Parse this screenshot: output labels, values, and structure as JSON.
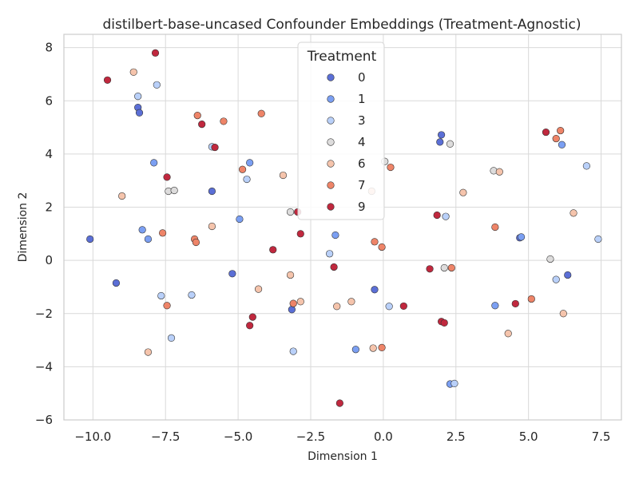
{
  "chart_data": {
    "type": "scatter",
    "title": "distilbert-base-uncased Confounder Embeddings (Treatment-Agnostic)",
    "xlabel": "Dimension 1",
    "ylabel": "Dimension 2",
    "xlim": [
      -11,
      8.2
    ],
    "ylim": [
      -6,
      8.5
    ],
    "xticks": [
      -10,
      -7.5,
      -5,
      -2.5,
      0,
      2.5,
      5,
      7.5
    ],
    "xtick_labels": [
      "−10.0",
      "−7.5",
      "−5.0",
      "−2.5",
      "0.0",
      "2.5",
      "5.0",
      "7.5"
    ],
    "yticks": [
      -6,
      -4,
      -2,
      0,
      2,
      4,
      6,
      8
    ],
    "ytick_labels": [
      "−6",
      "−4",
      "−2",
      "0",
      "2",
      "4",
      "6",
      "8"
    ],
    "grid": true,
    "legend": {
      "title": "Treatment",
      "placement": "top-center"
    },
    "series": [
      {
        "name": "0",
        "color": "#5b6fd6",
        "points": [
          [
            -10.1,
            0.8
          ],
          [
            -9.2,
            -0.85
          ],
          [
            -8.45,
            5.75
          ],
          [
            -8.4,
            5.55
          ],
          [
            -5.9,
            2.6
          ],
          [
            -5.2,
            -0.5
          ],
          [
            -3.15,
            -1.85
          ],
          [
            -0.3,
            -1.1
          ],
          [
            1.95,
            4.45
          ],
          [
            2.0,
            4.72
          ],
          [
            4.7,
            0.85
          ],
          [
            6.35,
            -0.55
          ]
        ]
      },
      {
        "name": "1",
        "color": "#7b9ff2",
        "points": [
          [
            -8.3,
            1.15
          ],
          [
            -8.1,
            0.8
          ],
          [
            -7.9,
            3.67
          ],
          [
            -4.95,
            1.55
          ],
          [
            -4.6,
            3.67
          ],
          [
            -1.65,
            0.95
          ],
          [
            -0.95,
            -3.35
          ],
          [
            2.3,
            -4.65
          ],
          [
            3.85,
            -1.7
          ],
          [
            4.75,
            0.88
          ],
          [
            6.15,
            4.35
          ]
        ]
      },
      {
        "name": "3",
        "color": "#b9d0f9",
        "points": [
          [
            -8.45,
            6.17
          ],
          [
            -7.8,
            6.6
          ],
          [
            -7.65,
            -1.33
          ],
          [
            -7.3,
            -2.92
          ],
          [
            -6.6,
            -1.3
          ],
          [
            -5.9,
            4.27
          ],
          [
            -4.7,
            3.05
          ],
          [
            -3.1,
            -3.42
          ],
          [
            -1.85,
            0.25
          ],
          [
            0.2,
            -1.73
          ],
          [
            2.15,
            1.65
          ],
          [
            2.45,
            -4.63
          ],
          [
            5.95,
            -0.72
          ],
          [
            7.0,
            3.55
          ],
          [
            7.4,
            0.8
          ]
        ]
      },
      {
        "name": "4",
        "color": "#dddcdc",
        "points": [
          [
            -7.4,
            2.6
          ],
          [
            -7.2,
            2.63
          ],
          [
            -3.2,
            1.82
          ],
          [
            0.05,
            3.72
          ],
          [
            2.1,
            -0.28
          ],
          [
            2.3,
            4.38
          ],
          [
            3.8,
            3.37
          ],
          [
            5.75,
            0.05
          ]
        ]
      },
      {
        "name": "6",
        "color": "#f5c4ac",
        "points": [
          [
            -9.0,
            2.42
          ],
          [
            -8.6,
            7.08
          ],
          [
            -8.1,
            -3.45
          ],
          [
            -5.9,
            1.28
          ],
          [
            -4.3,
            -1.08
          ],
          [
            -3.45,
            3.2
          ],
          [
            -3.2,
            -0.55
          ],
          [
            -2.85,
            -1.55
          ],
          [
            -1.6,
            -1.73
          ],
          [
            -1.1,
            -1.55
          ],
          [
            -0.4,
            2.6
          ],
          [
            -0.35,
            -3.3
          ],
          [
            2.75,
            2.55
          ],
          [
            4.0,
            3.33
          ],
          [
            4.3,
            -2.75
          ],
          [
            6.2,
            -2.0
          ],
          [
            6.55,
            1.78
          ]
        ]
      },
      {
        "name": "7",
        "color": "#ee8468",
        "points": [
          [
            -7.6,
            1.03
          ],
          [
            -7.45,
            -1.7
          ],
          [
            -6.5,
            0.8
          ],
          [
            -6.45,
            0.68
          ],
          [
            -6.4,
            5.45
          ],
          [
            -5.5,
            5.23
          ],
          [
            -4.85,
            3.42
          ],
          [
            -4.2,
            5.52
          ],
          [
            -3.1,
            -1.62
          ],
          [
            -0.3,
            0.7
          ],
          [
            -0.05,
            -3.28
          ],
          [
            -0.05,
            0.5
          ],
          [
            0.25,
            3.5
          ],
          [
            2.35,
            -0.28
          ],
          [
            3.85,
            1.25
          ],
          [
            5.1,
            -1.45
          ],
          [
            5.95,
            4.58
          ],
          [
            6.1,
            4.88
          ]
        ]
      },
      {
        "name": "9",
        "color": "#c0283e",
        "points": [
          [
            -9.5,
            6.78
          ],
          [
            -7.85,
            7.8
          ],
          [
            -7.45,
            3.13
          ],
          [
            -6.25,
            5.12
          ],
          [
            -5.8,
            4.25
          ],
          [
            -4.6,
            -2.45
          ],
          [
            -4.5,
            -2.13
          ],
          [
            -3.8,
            0.4
          ],
          [
            -2.95,
            1.82
          ],
          [
            -2.85,
            1.0
          ],
          [
            -1.7,
            -0.25
          ],
          [
            -1.5,
            -5.37
          ],
          [
            0.7,
            -1.72
          ],
          [
            1.6,
            -0.32
          ],
          [
            1.85,
            1.7
          ],
          [
            2.0,
            -2.3
          ],
          [
            2.1,
            -2.35
          ],
          [
            4.55,
            -1.63
          ],
          [
            5.6,
            4.82
          ]
        ]
      }
    ]
  }
}
